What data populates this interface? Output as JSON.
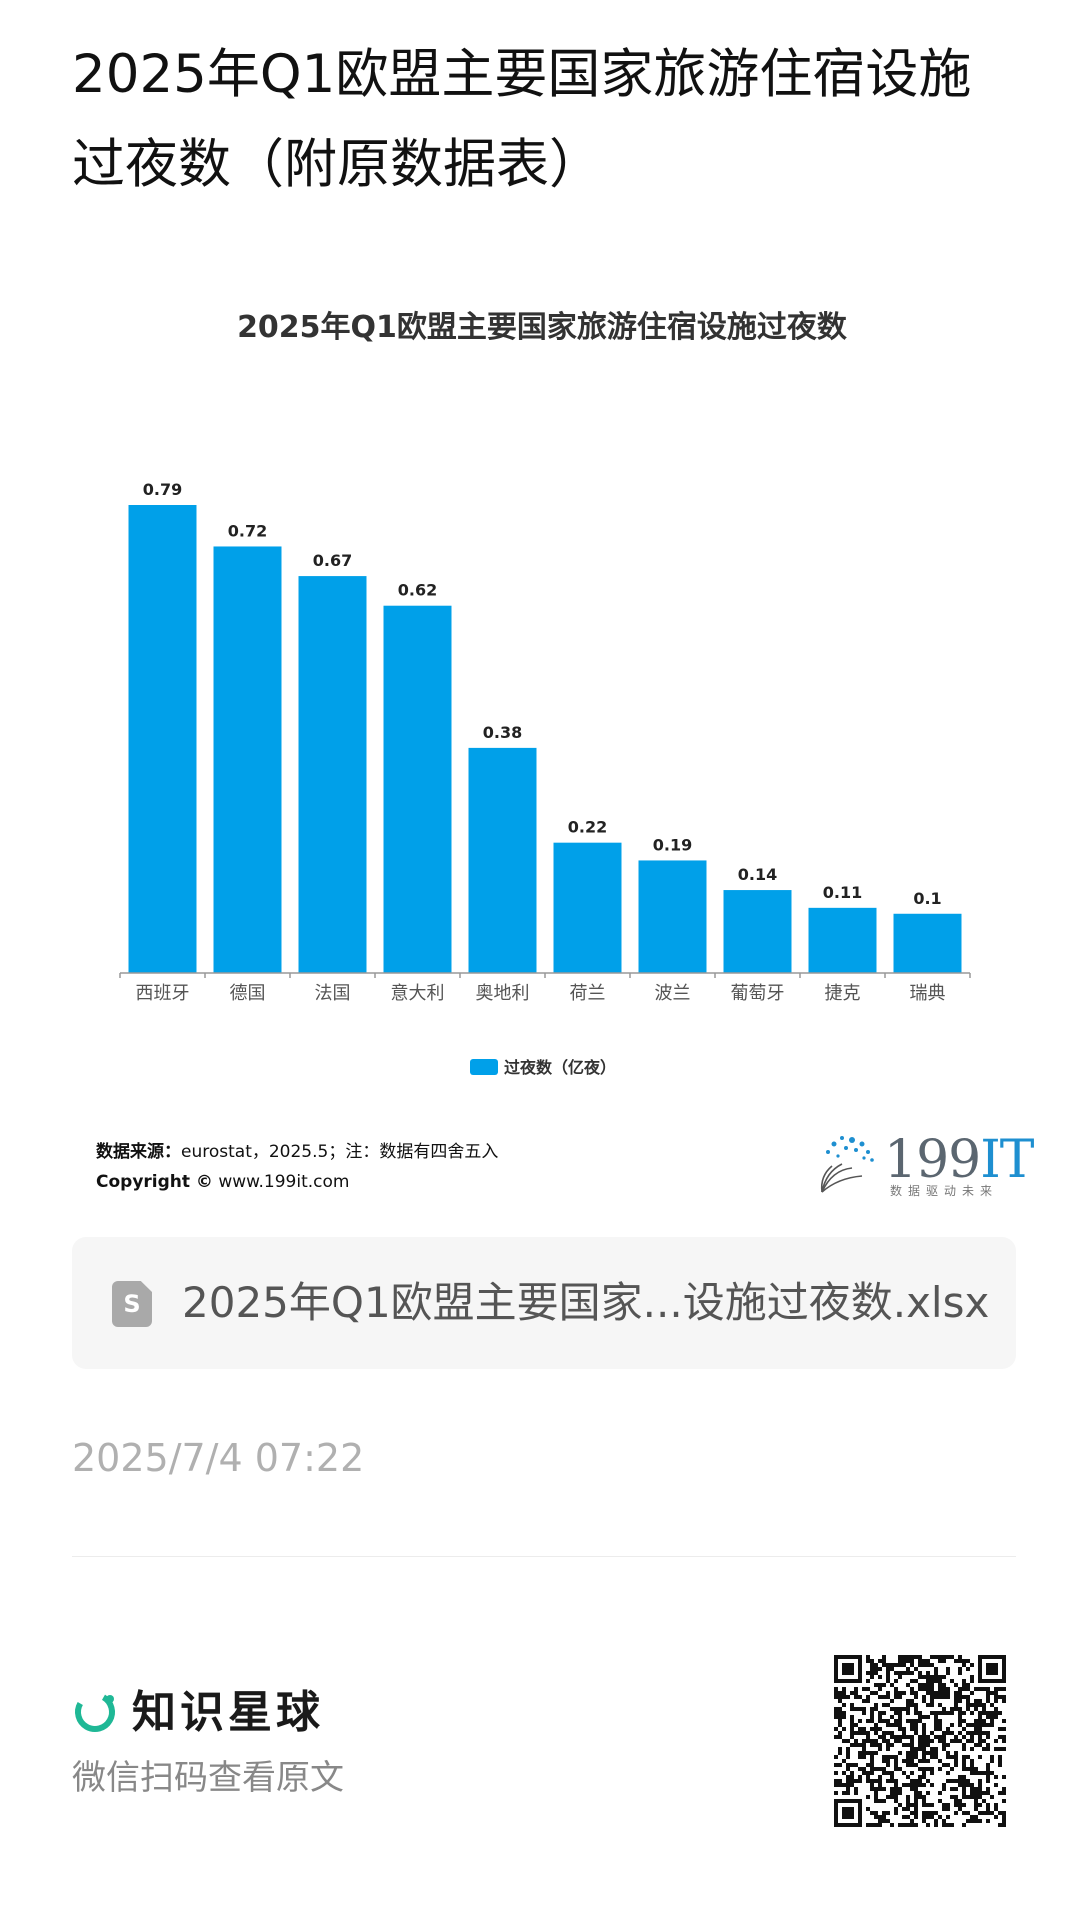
{
  "post": {
    "title": "2025年Q1欧盟主要国家旅游住宿设施过夜数（附原数据表）"
  },
  "chart_data": {
    "type": "bar",
    "title": "2025年Q1欧盟主要国家旅游住宿设施过夜数",
    "categories": [
      "西班牙",
      "德国",
      "法国",
      "意大利",
      "奥地利",
      "荷兰",
      "波兰",
      "葡萄牙",
      "捷克",
      "瑞典"
    ],
    "series": [
      {
        "name": "过夜数（亿夜）",
        "values": [
          0.79,
          0.72,
          0.67,
          0.62,
          0.38,
          0.22,
          0.19,
          0.14,
          0.11,
          0.1
        ]
      }
    ],
    "value_labels": [
      "0.79",
      "0.72",
      "0.67",
      "0.62",
      "0.38",
      "0.22",
      "0.19",
      "0.14",
      "0.11",
      "0.1"
    ],
    "ylim": [
      0,
      0.79
    ],
    "grid": false,
    "legend_position": "bottom",
    "bar_color": "#00a0e9"
  },
  "source": {
    "label": "数据来源：",
    "text": "eurostat，2025.5；注：数据有四舍五入",
    "copyright_label": "Copyright ©",
    "copyright_url": "www.199it.com"
  },
  "logo": {
    "text_main": "199",
    "text_accent": "IT",
    "tagline": "数据驱动未来"
  },
  "attachment": {
    "icon": "spreadsheet-file-icon",
    "filename": "2025年Q1欧盟主要国家...设施过夜数.xlsx"
  },
  "timestamp": "2025/7/4 07:22",
  "footer": {
    "brand_name": "知识星球",
    "brand_icon": "planet-ring-icon",
    "subtitle": "微信扫码查看原文",
    "qr_icon": "qr-code-icon"
  },
  "colors": {
    "accent": "#00a0e9",
    "brand_green": "#1fb896"
  }
}
